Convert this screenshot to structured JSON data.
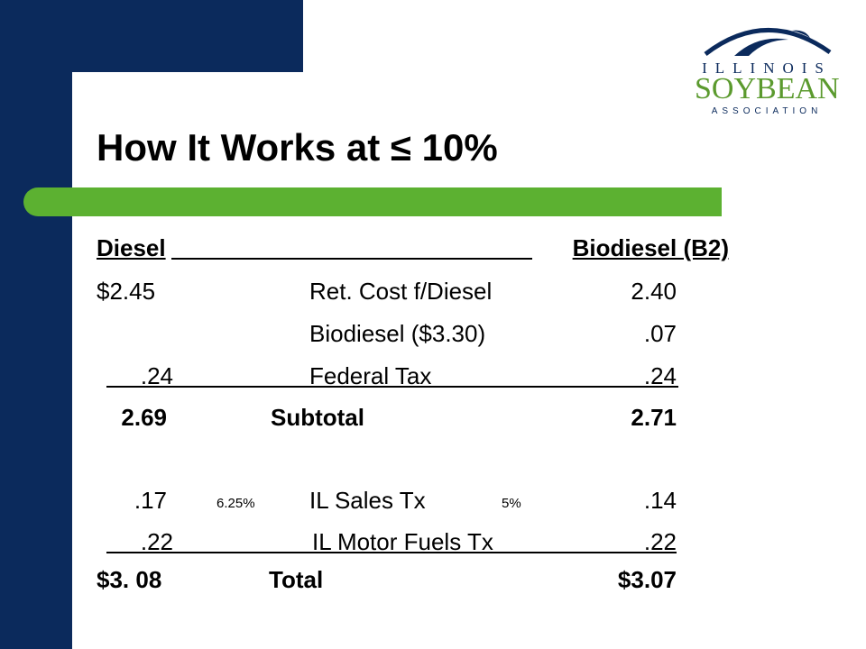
{
  "slide": {
    "title": "How It Works at ≤ 10%",
    "colors": {
      "navy": "#0b2a5c",
      "green": "#5cb131",
      "logo_green": "#5b9a2e"
    }
  },
  "logo": {
    "line1": "ILLINOIS",
    "line2": "SOYBEAN",
    "line3": "ASSOCIATION",
    "icon": "soybean-arc-icon"
  },
  "table": {
    "header_left": "Diesel",
    "header_right": "Biodiesel  (B2)",
    "rows": {
      "ret_cost": {
        "left": "$2.45",
        "label": "Ret. Cost f/Diesel",
        "right": "2.40"
      },
      "biodiesel": {
        "left": "",
        "label": "Biodiesel  ($3.30)",
        "right": ".07"
      },
      "federal_tax": {
        "left": ".24",
        "label": "Federal Tax",
        "right": ".24"
      },
      "subtotal": {
        "left": "2.69",
        "label": "Subtotal",
        "right": "2.71"
      },
      "sales_tax": {
        "left": ".17",
        "left_rate": "6.25%",
        "label": "IL Sales Tx",
        "right_rate": "5%",
        "right": ".14"
      },
      "motor_fuels": {
        "left": ".22",
        "label": "IL Motor Fuels Tx",
        "right": ".22"
      },
      "total": {
        "left": "$3. 08",
        "label": "Total",
        "right": "$3.07"
      }
    }
  }
}
